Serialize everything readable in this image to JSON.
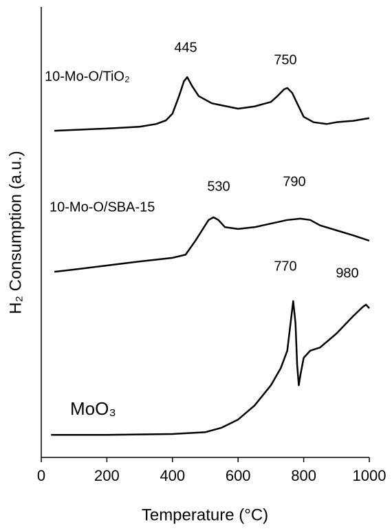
{
  "chart_data": {
    "type": "line",
    "xlabel": "Temperature (°C)",
    "ylabel": "H₂ Consumption (a.u.)",
    "xlim": [
      0,
      1000
    ],
    "xticks": [
      0,
      200,
      400,
      600,
      800,
      1000
    ],
    "ylim": [
      0,
      100
    ],
    "annotations": [
      "445",
      "750",
      "530",
      "790",
      "770",
      "980"
    ],
    "series": [
      {
        "name": "10-Mo-O/TiO₂",
        "color": "#000000",
        "x": [
          40,
          100,
          200,
          300,
          350,
          380,
          400,
          420,
          435,
          445,
          460,
          480,
          520,
          560,
          600,
          650,
          700,
          720,
          740,
          750,
          765,
          780,
          800,
          830,
          870,
          900,
          950,
          1000
        ],
        "values": [
          72.5,
          72.7,
          73.0,
          73.4,
          74.0,
          74.8,
          76.3,
          80.2,
          83.5,
          84.4,
          82.4,
          80.2,
          78.6,
          78.0,
          77.4,
          77.9,
          78.9,
          80.2,
          81.7,
          82.0,
          80.9,
          78.6,
          75.6,
          74.4,
          74.0,
          74.4,
          74.7,
          75.3
        ]
      },
      {
        "name": "10-Mo-O/SBA-15",
        "color": "#000000",
        "x": [
          40,
          100,
          200,
          300,
          400,
          440,
          470,
          490,
          510,
          525,
          540,
          560,
          600,
          650,
          700,
          750,
          790,
          820,
          850,
          900,
          950,
          1000
        ],
        "values": [
          41.2,
          41.7,
          42.6,
          43.5,
          44.3,
          45.0,
          48.1,
          50.4,
          52.7,
          53.3,
          52.7,
          51.1,
          50.7,
          51.1,
          51.9,
          52.7,
          53.0,
          52.7,
          51.5,
          50.4,
          49.3,
          48.1
        ]
      },
      {
        "name": "MoO₃",
        "color": "#000000",
        "x": [
          30,
          200,
          400,
          500,
          550,
          600,
          650,
          700,
          730,
          750,
          760,
          768,
          775,
          780,
          785,
          790,
          800,
          820,
          850,
          900,
          950,
          980,
          990,
          1000
        ],
        "values": [
          5.0,
          5.0,
          5.2,
          5.6,
          6.6,
          8.4,
          11.5,
          16.0,
          19.8,
          23.7,
          29.8,
          34.7,
          29.8,
          20.6,
          16.0,
          18.3,
          22.1,
          23.7,
          24.4,
          27.5,
          31.3,
          33.4,
          33.9,
          33.1
        ]
      }
    ]
  }
}
